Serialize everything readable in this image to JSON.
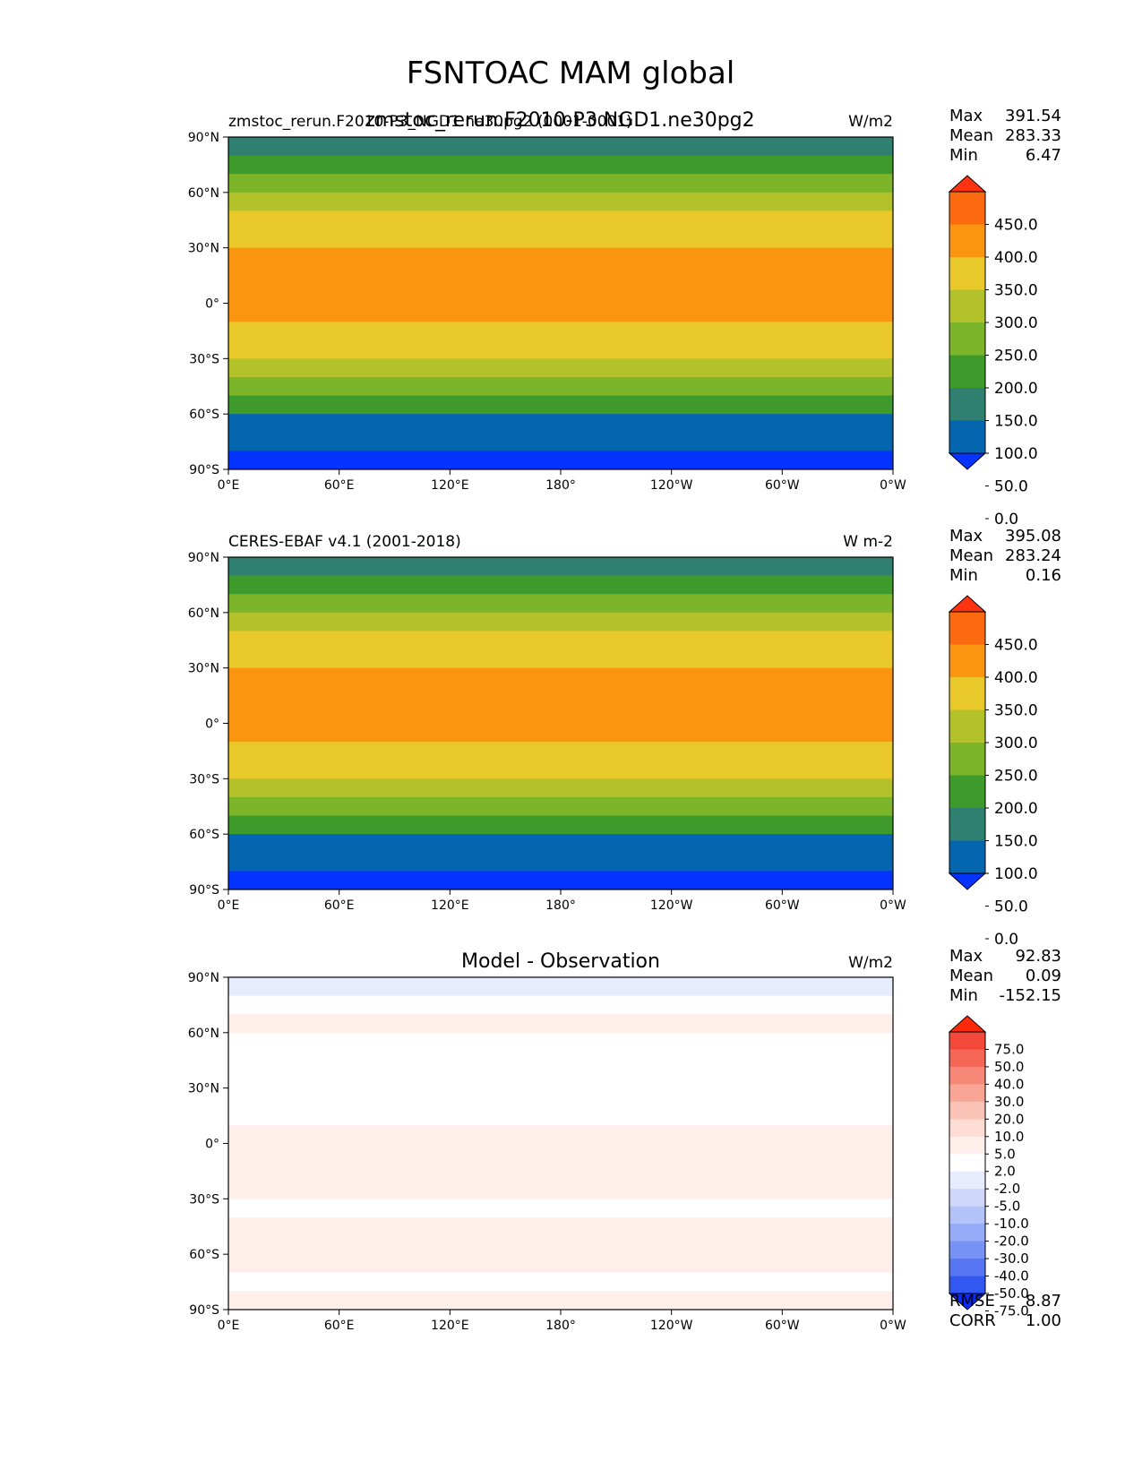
{
  "figure": {
    "title": "FSNTOAC MAM global",
    "overlay_title": "zmstoc_rerun.F2010-P3.NGD1.ne30pg2"
  },
  "axes": {
    "lat_ticks": [
      "90°N",
      "60°N",
      "30°N",
      "0°",
      "30°S",
      "60°S",
      "90°S"
    ],
    "lon_ticks": [
      "0°E",
      "60°E",
      "120°E",
      "180°",
      "120°W",
      "60°W",
      "0°W"
    ]
  },
  "chart_data": [
    {
      "type": "heatmap",
      "id": "model",
      "title_left": "zmstoc_rerun.F2010-P3_NGD1.ne30pg2 (0001-0001)",
      "units": "W/m2",
      "stats": [
        {
          "label": "Max",
          "value": "391.54"
        },
        {
          "label": "Mean",
          "value": "283.33"
        },
        {
          "label": "Min",
          "value": "6.47"
        }
      ],
      "colorbar": {
        "labels": [
          "450.0",
          "400.0",
          "350.0",
          "300.0",
          "250.0",
          "200.0",
          "150.0",
          "100.0",
          "50.0",
          "0.0"
        ],
        "colors": [
          "#ff3311",
          "#fb6a0e",
          "#fb940f",
          "#e9c92a",
          "#b3c22a",
          "#7cb42a",
          "#3f9a2c",
          "#2f8070",
          "#0566b0",
          "#0433ff"
        ]
      },
      "zonal_bands": [
        {
          "lat": 90,
          "value": 110
        },
        {
          "lat": 80,
          "value": 125
        },
        {
          "lat": 70,
          "value": 175
        },
        {
          "lat": 60,
          "value": 230
        },
        {
          "lat": 50,
          "value": 285
        },
        {
          "lat": 40,
          "value": 330
        },
        {
          "lat": 30,
          "value": 360
        },
        {
          "lat": 20,
          "value": 375
        },
        {
          "lat": 10,
          "value": 375
        },
        {
          "lat": 0,
          "value": 372
        },
        {
          "lat": -10,
          "value": 355
        },
        {
          "lat": -20,
          "value": 330
        },
        {
          "lat": -30,
          "value": 290
        },
        {
          "lat": -40,
          "value": 245
        },
        {
          "lat": -50,
          "value": 195
        },
        {
          "lat": -60,
          "value": 130
        },
        {
          "lat": -70,
          "value": 60
        },
        {
          "lat": -80,
          "value": 40
        },
        {
          "lat": -90,
          "value": 40
        }
      ]
    },
    {
      "type": "heatmap",
      "id": "obs",
      "title_left": "CERES-EBAF v4.1 (2001-2018)",
      "units": "W m-2",
      "stats": [
        {
          "label": "Max",
          "value": "395.08"
        },
        {
          "label": "Mean",
          "value": "283.24"
        },
        {
          "label": "Min",
          "value": "0.16"
        }
      ],
      "colorbar": {
        "labels": [
          "450.0",
          "400.0",
          "350.0",
          "300.0",
          "250.0",
          "200.0",
          "150.0",
          "100.0",
          "50.0",
          "0.0"
        ],
        "colors": [
          "#ff3311",
          "#fb6a0e",
          "#fb940f",
          "#e9c92a",
          "#b3c22a",
          "#7cb42a",
          "#3f9a2c",
          "#2f8070",
          "#0566b0",
          "#0433ff"
        ]
      },
      "zonal_bands": [
        {
          "lat": 90,
          "value": 110
        },
        {
          "lat": 80,
          "value": 125
        },
        {
          "lat": 70,
          "value": 175
        },
        {
          "lat": 60,
          "value": 230
        },
        {
          "lat": 50,
          "value": 285
        },
        {
          "lat": 40,
          "value": 330
        },
        {
          "lat": 30,
          "value": 360
        },
        {
          "lat": 20,
          "value": 375
        },
        {
          "lat": 10,
          "value": 375
        },
        {
          "lat": 0,
          "value": 372
        },
        {
          "lat": -10,
          "value": 355
        },
        {
          "lat": -20,
          "value": 330
        },
        {
          "lat": -30,
          "value": 290
        },
        {
          "lat": -40,
          "value": 245
        },
        {
          "lat": -50,
          "value": 195
        },
        {
          "lat": -60,
          "value": 130
        },
        {
          "lat": -70,
          "value": 60
        },
        {
          "lat": -80,
          "value": 40
        },
        {
          "lat": -90,
          "value": 40
        }
      ]
    },
    {
      "type": "heatmap",
      "id": "diff",
      "title_center": "Model - Observation",
      "units": "W/m2",
      "stats": [
        {
          "label": "Max",
          "value": "92.83"
        },
        {
          "label": "Mean",
          "value": "0.09"
        },
        {
          "label": "Min",
          "value": "-152.15"
        }
      ],
      "extra_stats": [
        {
          "label": "RMSE",
          "value": "8.87"
        },
        {
          "label": "CORR",
          "value": "1.00"
        }
      ],
      "colorbar": {
        "labels": [
          "75.0",
          "50.0",
          "40.0",
          "30.0",
          "20.0",
          "10.0",
          "5.0",
          "2.0",
          "-2.0",
          "-5.0",
          "-10.0",
          "-20.0",
          "-30.0",
          "-40.0",
          "-50.0",
          "-75.0"
        ],
        "colors": [
          "#ff2a0a",
          "#f2493a",
          "#f56656",
          "#f78878",
          "#f9a596",
          "#fbc2b6",
          "#fddcd4",
          "#ffeeea",
          "#ffffff",
          "#e6ebfd",
          "#cfd8fb",
          "#b4c3f9",
          "#96abf7",
          "#7792f5",
          "#5676f3",
          "#3358f2",
          "#0a2af6"
        ]
      },
      "zonal_bands": [
        {
          "lat": 90,
          "value": -6
        },
        {
          "lat": 80,
          "value": -4
        },
        {
          "lat": 70,
          "value": 3
        },
        {
          "lat": 60,
          "value": 2
        },
        {
          "lat": 50,
          "value": 1
        },
        {
          "lat": 40,
          "value": -3
        },
        {
          "lat": 30,
          "value": -1
        },
        {
          "lat": 20,
          "value": 0
        },
        {
          "lat": 10,
          "value": 1
        },
        {
          "lat": 0,
          "value": 3
        },
        {
          "lat": -10,
          "value": 2
        },
        {
          "lat": -20,
          "value": 3
        },
        {
          "lat": -30,
          "value": 2
        },
        {
          "lat": -40,
          "value": 1
        },
        {
          "lat": -50,
          "value": 3
        },
        {
          "lat": -60,
          "value": 4
        },
        {
          "lat": -70,
          "value": 2
        },
        {
          "lat": -80,
          "value": 1
        },
        {
          "lat": -90,
          "value": 3
        }
      ]
    }
  ]
}
